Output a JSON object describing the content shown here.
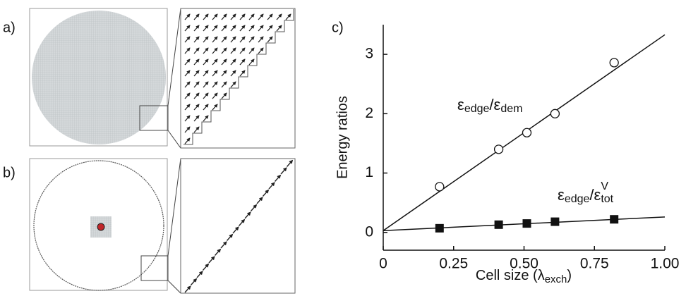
{
  "panel_labels": [
    "a)",
    "b)"
  ],
  "chart_data": {
    "type": "scatter",
    "panel_label": "c)",
    "x_label": "Cell size (λ",
    "x_label_sub": "exch",
    "x_label_end": ")",
    "y_label": "Energy ratios",
    "xlim": [
      0,
      1
    ],
    "ylim": [
      -0.3,
      3.5
    ],
    "xticks": [
      0,
      0.25,
      {
        "value": 0.5,
        "label": "0.50"
      },
      0.75,
      {
        "value": 1,
        "label": "1.00"
      }
    ],
    "yticks": [
      0,
      1,
      2,
      3
    ],
    "series": [
      {
        "marker": "open-circle",
        "color": "#111111",
        "x": [
          0.2,
          0.41,
          0.51,
          0.61,
          0.82
        ],
        "values": [
          0.77,
          1.4,
          1.68,
          2.0,
          2.86
        ]
      },
      {
        "marker": "filled-square",
        "color": "#111111",
        "x": [
          0.2,
          0.41,
          0.51,
          0.61,
          0.82
        ],
        "values": [
          0.07,
          0.13,
          0.15,
          0.18,
          0.22
        ]
      }
    ],
    "fits": [
      {
        "x": [
          0,
          1
        ],
        "values": [
          0.03,
          3.33
        ]
      },
      {
        "x": [
          0,
          1
        ],
        "values": [
          0.03,
          0.26
        ]
      }
    ],
    "annotations": [
      {
        "eps1": "ε",
        "sub1": "edge",
        "slash": "/ε",
        "sub2": "dem"
      },
      {
        "eps1": "ε",
        "sub1": "edge",
        "slash": "/ε",
        "sub2": "tot",
        "sup2": "V"
      }
    ]
  }
}
